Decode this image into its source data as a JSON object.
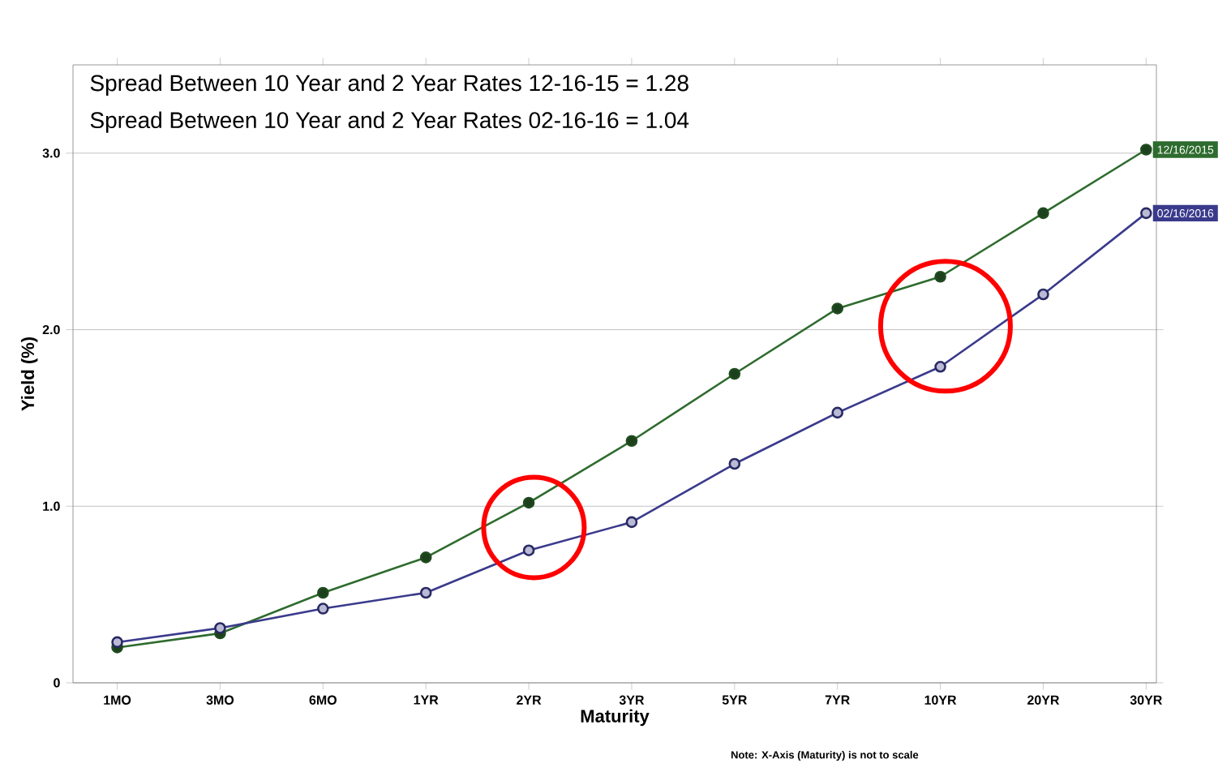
{
  "chart_data": {
    "type": "line",
    "xlabel": "Maturity",
    "ylabel": "Yield (%)",
    "categories": [
      "1MO",
      "3MO",
      "6MO",
      "1YR",
      "2YR",
      "3YR",
      "5YR",
      "7YR",
      "10YR",
      "20YR",
      "30YR"
    ],
    "series": [
      {
        "name": "12/16/2015",
        "color": "#2e6b2e",
        "values": [
          0.2,
          0.28,
          0.51,
          0.71,
          1.02,
          1.37,
          1.75,
          2.12,
          2.3,
          2.66,
          3.02
        ]
      },
      {
        "name": "02/16/2016",
        "color": "#3a3a8c",
        "values": [
          0.23,
          0.31,
          0.42,
          0.51,
          0.75,
          0.91,
          1.24,
          1.53,
          1.79,
          2.2,
          2.66
        ]
      }
    ],
    "ylim": [
      0,
      3.5
    ],
    "yticks": [
      0,
      {
        "value": 1,
        "label": "1.0"
      },
      {
        "value": 2,
        "label": "2.0"
      },
      {
        "value": 3,
        "label": "3.0"
      }
    ],
    "grid": "y",
    "marker": "circle",
    "line_style": "solid",
    "annotations": [
      "Spread Between 10 Year and 2 Year Rates 12-16-15 = 1.28",
      "Spread Between 10 Year and 2 Year Rates 02-16-16 = 1.04",
      "Note: X-Axis (Maturity) is not to scale"
    ]
  }
}
